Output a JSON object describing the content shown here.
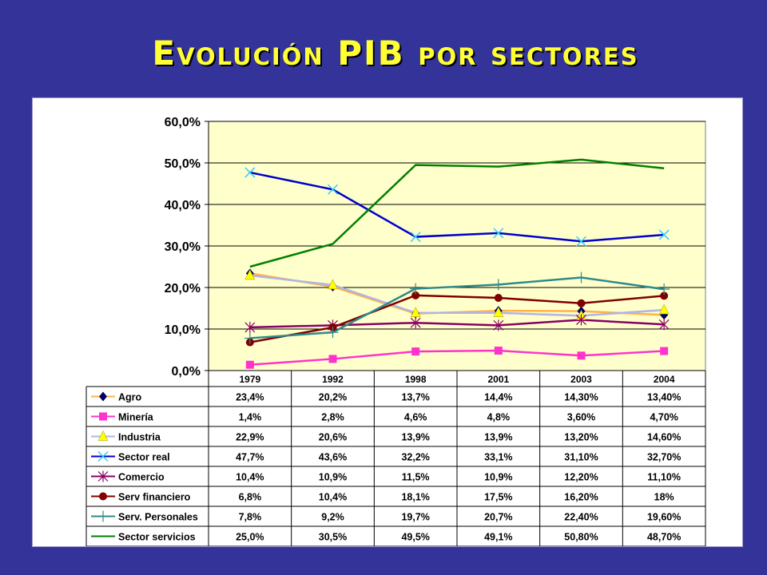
{
  "title": "Evolución PIB por sectores",
  "chart_data": {
    "type": "line",
    "categories": [
      "1979",
      "1992",
      "1998",
      "2001",
      "2003",
      "2004"
    ],
    "ylim": [
      0,
      60
    ],
    "yticks": [
      "0,0%",
      "10,0%",
      "20,0%",
      "30,0%",
      "40,0%",
      "50,0%",
      "60,0%"
    ],
    "grid": true,
    "legend": "data-table-below",
    "series": [
      {
        "name": "Agro",
        "values": [
          23.4,
          20.2,
          13.7,
          14.4,
          14.3,
          13.4
        ],
        "labels": [
          "23,4%",
          "20,2%",
          "13,7%",
          "14,4%",
          "14,30%",
          "13,40%"
        ],
        "color": "#FFB347",
        "marker": "diamond"
      },
      {
        "name": "Minería",
        "values": [
          1.4,
          2.8,
          4.6,
          4.8,
          3.6,
          4.7
        ],
        "labels": [
          "1,4%",
          "2,8%",
          "4,6%",
          "4,8%",
          "3,60%",
          "4,70%"
        ],
        "color": "#FF33CC",
        "marker": "square"
      },
      {
        "name": "Industria",
        "values": [
          22.9,
          20.6,
          13.9,
          13.9,
          13.2,
          14.6
        ],
        "labels": [
          "22,9%",
          "20,6%",
          "13,9%",
          "13,9%",
          "13,20%",
          "14,60%"
        ],
        "color": "#B0B4E8",
        "marker": "triangle"
      },
      {
        "name": "Sector real",
        "values": [
          47.7,
          43.6,
          32.2,
          33.1,
          31.1,
          32.7
        ],
        "labels": [
          "47,7%",
          "43,6%",
          "32,2%",
          "33,1%",
          "31,10%",
          "32,70%"
        ],
        "color": "#0000CC",
        "marker": "x"
      },
      {
        "name": "Comercio",
        "values": [
          10.4,
          10.9,
          11.5,
          10.9,
          12.2,
          11.1
        ],
        "labels": [
          "10,4%",
          "10,9%",
          "11,5%",
          "10,9%",
          "12,20%",
          "11,10%"
        ],
        "color": "#880066",
        "marker": "star"
      },
      {
        "name": "Serv financiero",
        "values": [
          6.8,
          10.4,
          18.1,
          17.5,
          16.2,
          18
        ],
        "labels": [
          "6,8%",
          "10,4%",
          "18,1%",
          "17,5%",
          "16,20%",
          "18%"
        ],
        "color": "#800000",
        "marker": "circle"
      },
      {
        "name": "Serv. Personales",
        "values": [
          7.8,
          9.2,
          19.7,
          20.7,
          22.4,
          19.6
        ],
        "labels": [
          "7,8%",
          "9,2%",
          "19,7%",
          "20,7%",
          "22,40%",
          "19,60%"
        ],
        "color": "#2E8B8B",
        "marker": "plus"
      },
      {
        "name": "Sector servicios",
        "values": [
          25.0,
          30.5,
          49.5,
          49.1,
          50.8,
          48.7
        ],
        "labels": [
          "25,0%",
          "30,5%",
          "49,5%",
          "49,1%",
          "50,80%",
          "48,70%"
        ],
        "color": "#008000",
        "marker": "none"
      }
    ]
  },
  "colors": {
    "background": "#333399",
    "plot_area": "#FFFFCC",
    "title": "#FFFF33"
  }
}
